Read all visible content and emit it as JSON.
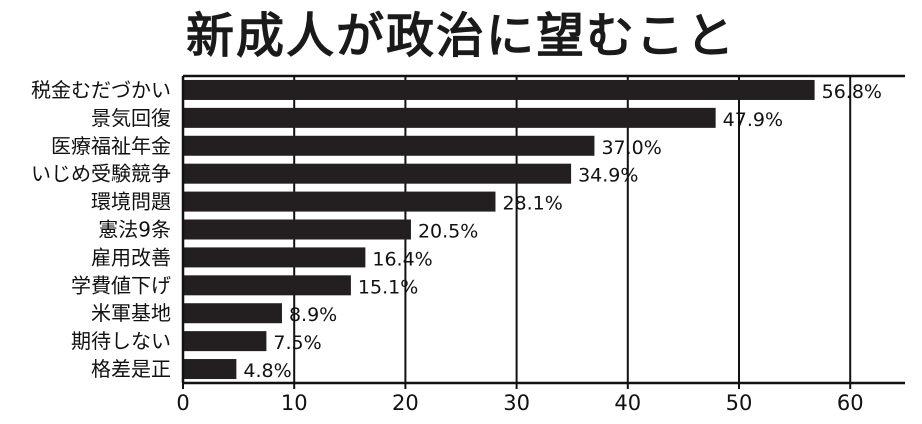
{
  "chart_data": {
    "type": "bar",
    "orientation": "horizontal",
    "title": "新成人が政治に望むこと",
    "categories": [
      "税金むだづかい",
      "景気回復",
      "医療福祉年金",
      "いじめ受験競争",
      "環境問題",
      "憲法9条",
      "雇用改善",
      "学費値下げ",
      "米軍基地",
      "期待しない",
      "格差是正"
    ],
    "values": [
      56.8,
      47.9,
      37.0,
      34.9,
      28.1,
      20.5,
      16.4,
      15.1,
      8.9,
      7.5,
      4.8
    ],
    "value_labels": [
      "56.8%",
      "47.9%",
      "37.0%",
      "34.9%",
      "28.1%",
      "20.5%",
      "16.4%",
      "15.1%",
      "8.9%",
      "7.5%",
      "4.8%"
    ],
    "xticks": [
      0,
      10,
      20,
      30,
      40,
      50,
      60
    ],
    "tick_labels": [
      "0",
      "10",
      "20",
      "30",
      "40",
      "50",
      "60"
    ],
    "xlim": [
      0,
      65
    ],
    "xlabel": "",
    "ylabel": "",
    "grid": true,
    "bar_color": "#231f20"
  }
}
